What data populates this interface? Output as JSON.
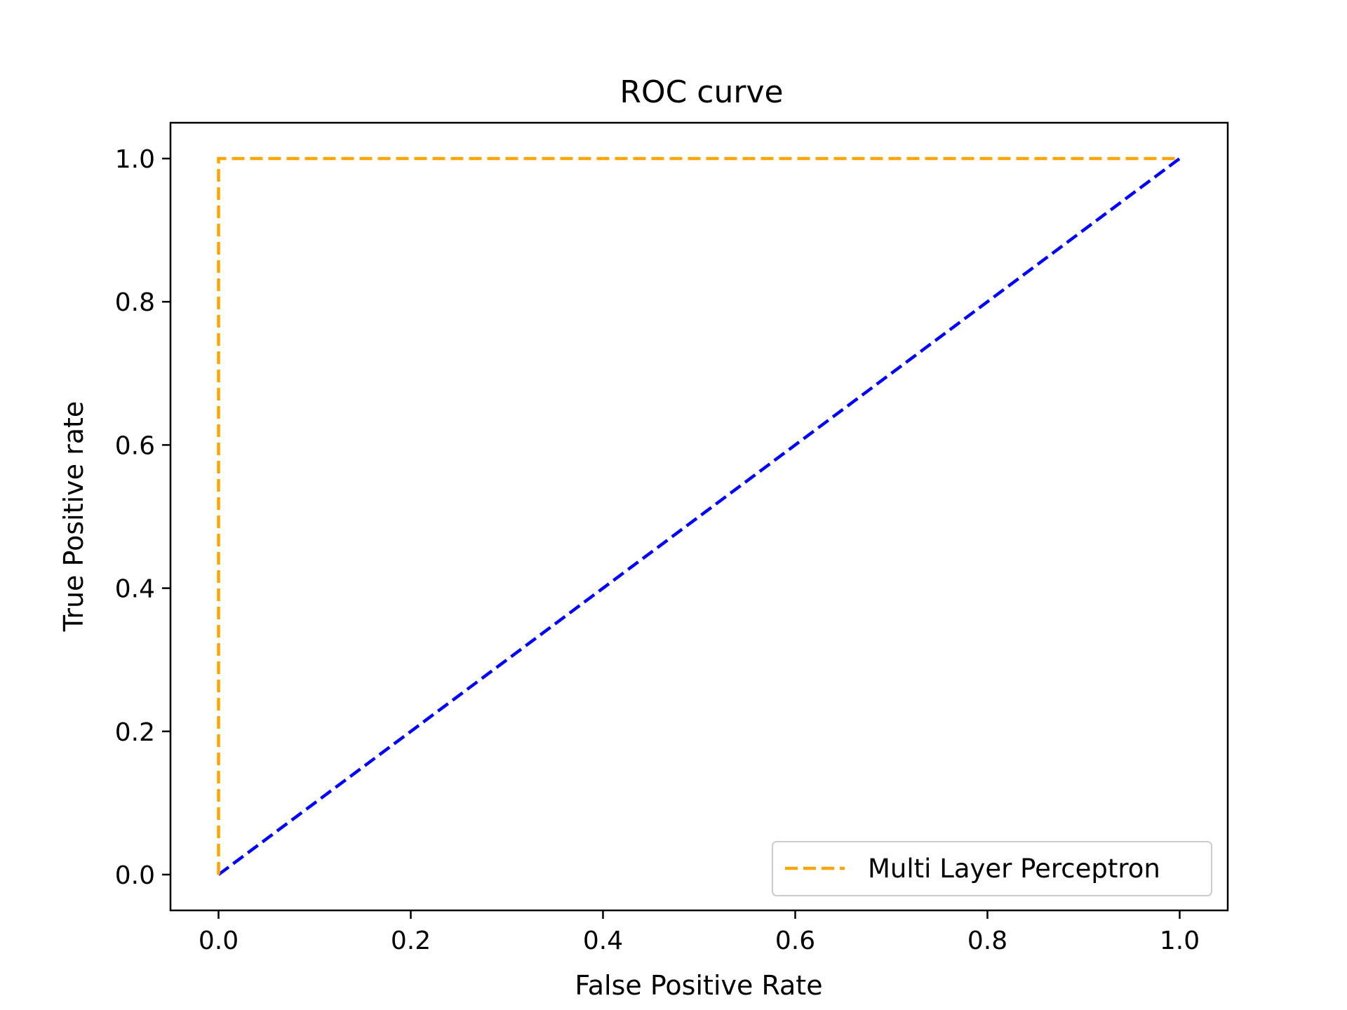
{
  "chart_data": {
    "type": "line",
    "title": "ROC curve",
    "xlabel": "False Positive Rate",
    "ylabel": "True Positive rate",
    "xlim": [
      -0.05,
      1.05
    ],
    "ylim": [
      -0.05,
      1.05
    ],
    "xticks": [
      "0.0",
      "0.2",
      "0.4",
      "0.6",
      "0.8",
      "1.0"
    ],
    "yticks": [
      "0.0",
      "0.2",
      "0.4",
      "0.6",
      "0.8",
      "1.0"
    ],
    "grid": false,
    "legend_position": "lower-right",
    "series": [
      {
        "name": "Multi Layer Perceptron",
        "x": [
          0.0,
          0.0,
          1.0
        ],
        "y": [
          0.0,
          1.0,
          1.0
        ],
        "color": "#FFA500",
        "style": "dashed",
        "in_legend": true
      },
      {
        "x": [
          0.0,
          1.0
        ],
        "y": [
          0.0,
          1.0
        ],
        "color": "#0000FF",
        "style": "dashed",
        "in_legend": false
      }
    ]
  }
}
